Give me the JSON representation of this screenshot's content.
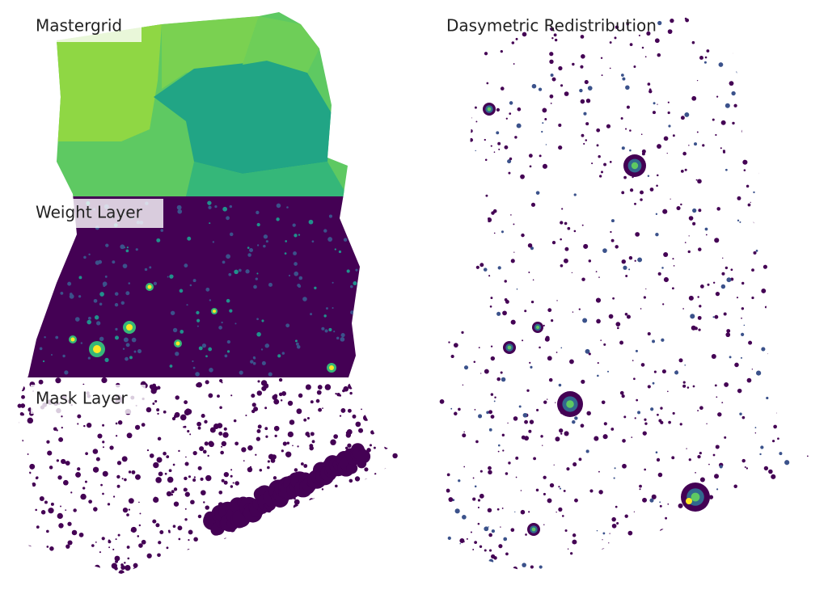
{
  "panels": [
    {
      "label": "Mastergrid"
    },
    {
      "label": "Weight Layer"
    },
    {
      "label": "Mask Layer"
    },
    {
      "label": "Dasymetric Redistribution"
    }
  ]
}
